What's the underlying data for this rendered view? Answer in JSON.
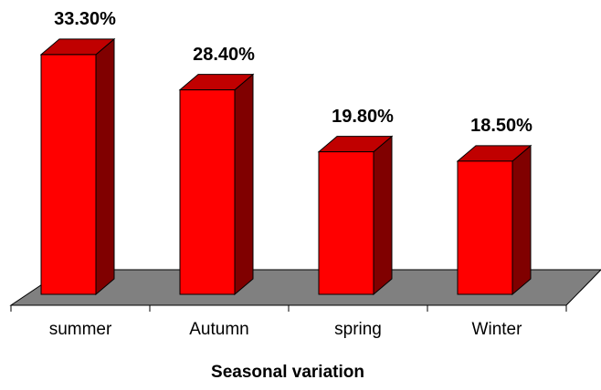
{
  "chart_data": {
    "type": "bar",
    "x_label": "Seasonal variation",
    "categories": [
      "summer",
      "Autumn",
      "spring",
      "Winter"
    ],
    "values": [
      33.3,
      28.4,
      19.8,
      18.5
    ],
    "value_labels": [
      "33.30%",
      "28.40%",
      "19.80%",
      "18.50%"
    ],
    "color": "#ff0000"
  }
}
